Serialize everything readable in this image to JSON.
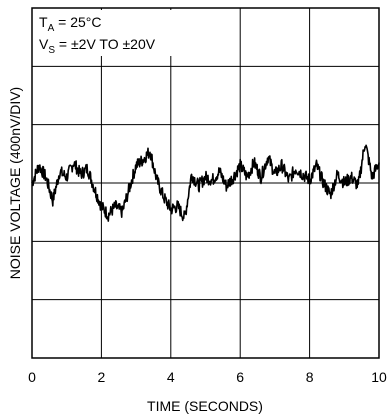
{
  "chart_data": {
    "type": "line",
    "title": "",
    "xlabel": "TIME (SECONDS)",
    "ylabel": "NOISE VOLTAGE (400nV/DIV)",
    "xlim": [
      0,
      10
    ],
    "ylim": [
      0,
      6
    ],
    "y_units_note": "divisions",
    "x_ticks": [
      "0",
      "2",
      "4",
      "6",
      "8",
      "10"
    ],
    "grid": true,
    "legend": "none",
    "conditions": [
      {
        "main": "T",
        "sub": "A",
        "rest": " = 25°C"
      },
      {
        "main": "V",
        "sub": "S",
        "rest": " = ±2V TO ±20V"
      }
    ],
    "series": [
      {
        "color": "#000000",
        "x": [
          0.0,
          0.2,
          0.4,
          0.6,
          0.8,
          1.0,
          1.2,
          1.4,
          1.6,
          1.8,
          2.0,
          2.2,
          2.4,
          2.6,
          2.8,
          3.0,
          3.2,
          3.4,
          3.6,
          3.8,
          4.0,
          4.2,
          4.4,
          4.6,
          4.8,
          5.0,
          5.2,
          5.4,
          5.6,
          5.8,
          6.0,
          6.2,
          6.4,
          6.6,
          6.8,
          7.0,
          7.2,
          7.4,
          7.6,
          7.8,
          8.0,
          8.2,
          8.4,
          8.6,
          8.8,
          9.0,
          9.2,
          9.4,
          9.6,
          9.8,
          10.0
        ],
        "y": [
          3.0,
          3.3,
          3.1,
          2.7,
          3.2,
          3.1,
          3.35,
          3.15,
          3.25,
          2.9,
          2.6,
          2.45,
          2.6,
          2.5,
          2.9,
          3.3,
          3.4,
          3.55,
          3.05,
          2.75,
          2.55,
          2.6,
          2.4,
          3.15,
          2.95,
          3.1,
          3.05,
          3.2,
          2.95,
          3.1,
          3.3,
          3.1,
          3.35,
          3.1,
          3.45,
          3.15,
          3.3,
          3.05,
          3.25,
          3.15,
          3.05,
          3.3,
          3.0,
          2.8,
          3.15,
          3.0,
          3.1,
          2.95,
          3.7,
          3.1,
          3.35
        ]
      }
    ]
  }
}
